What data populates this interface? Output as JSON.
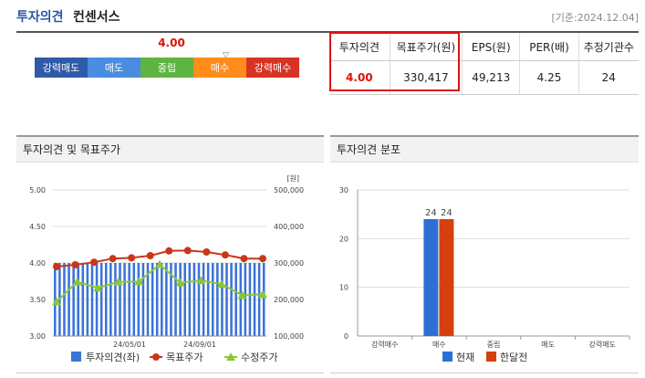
{
  "header": {
    "title_accent": "투자의견",
    "title_rest": "컨센서스",
    "date": "[기준:2024.12.04]"
  },
  "opinion_bar": {
    "score": "4.00",
    "marker": "▽",
    "segments": [
      {
        "label": "강력매도",
        "color": "#2e5aa8"
      },
      {
        "label": "매도",
        "color": "#4a8de0"
      },
      {
        "label": "중립",
        "color": "#5fb341"
      },
      {
        "label": "매수",
        "color": "#ff8c1a"
      },
      {
        "label": "강력매수",
        "color": "#d63325"
      }
    ]
  },
  "consensus_table": {
    "headers": [
      "투자의견",
      "목표주가(원)",
      "EPS(원)",
      "PER(배)",
      "추정기관수"
    ],
    "values": [
      "4.00",
      "330,417",
      "49,213",
      "4.25",
      "24"
    ]
  },
  "left_panel": {
    "title": "투자의견 및 목표주가"
  },
  "right_panel": {
    "title": "투자의견 분포"
  },
  "chart_data": [
    {
      "type": "line",
      "title": "투자의견 및 목표주가",
      "y_left": {
        "ticks": [
          "5.00",
          "4.50",
          "4.00",
          "3.50",
          "3.00"
        ],
        "range": [
          3.0,
          5.0
        ]
      },
      "y_right": {
        "unit": "[원]",
        "ticks": [
          "500,000",
          "400,000",
          "300,000",
          "200,000",
          "100,000"
        ],
        "range": [
          100000,
          500000
        ]
      },
      "x_labels": [
        "24/05/01",
        "24/09/01"
      ],
      "bars_opinion": [
        4,
        4,
        4,
        4,
        4,
        4,
        4,
        4,
        4,
        4,
        4,
        4,
        4,
        4,
        4,
        4,
        4,
        4,
        4,
        4,
        4,
        4,
        4,
        4,
        4,
        4,
        4,
        4,
        4,
        4,
        4,
        4,
        4,
        4,
        4,
        4,
        4,
        4,
        4,
        4,
        4,
        4,
        4,
        4,
        4,
        4
      ],
      "series": [
        {
          "name": "목표주가",
          "values": [
            290000,
            295000,
            302000,
            312000,
            314000,
            320000,
            333000,
            334000,
            330000,
            322000,
            312000,
            312000
          ],
          "color": "#c8371a"
        },
        {
          "name": "수정주가",
          "values": [
            194000,
            248000,
            232000,
            248000,
            249000,
            296000,
            246000,
            252000,
            242000,
            212000,
            214000
          ],
          "color": "#8ac53a"
        }
      ],
      "legend": [
        "투자의견(좌)",
        "목표주가",
        "수정주가"
      ],
      "legend_colors": [
        "#3b73d6",
        "#c8371a",
        "#8ac53a"
      ]
    },
    {
      "type": "bar",
      "title": "투자의견 분포",
      "categories": [
        "강력매수",
        "매수",
        "중립",
        "매도",
        "강력매도"
      ],
      "ylim": [
        0,
        30
      ],
      "yticks": [
        "30",
        "20",
        "10",
        "0"
      ],
      "series": [
        {
          "name": "현재",
          "values": [
            0,
            24,
            0,
            0,
            0
          ],
          "color": "#2e6fd6"
        },
        {
          "name": "한달전",
          "values": [
            0,
            24,
            0,
            0,
            0
          ],
          "color": "#d6400e"
        }
      ],
      "data_labels": [
        "24",
        "24"
      ]
    }
  ]
}
